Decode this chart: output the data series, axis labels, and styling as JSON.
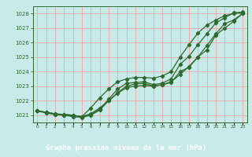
{
  "x": [
    0,
    1,
    2,
    3,
    4,
    5,
    6,
    7,
    8,
    9,
    10,
    11,
    12,
    13,
    14,
    15,
    16,
    17,
    18,
    19,
    20,
    21,
    22,
    23
  ],
  "line1": [
    1021.3,
    1021.2,
    1021.1,
    1021.05,
    1021.0,
    1020.9,
    1021.1,
    1021.5,
    1022.0,
    1022.5,
    1022.9,
    1023.0,
    1023.05,
    1023.0,
    1023.1,
    1023.3,
    1023.8,
    1024.35,
    1025.0,
    1025.8,
    1026.6,
    1027.3,
    1027.55,
    1028.0
  ],
  "line2": [
    1021.3,
    1021.2,
    1021.05,
    1021.0,
    1020.9,
    1020.85,
    1021.0,
    1021.35,
    1022.0,
    1022.55,
    1023.0,
    1023.15,
    1023.2,
    1023.0,
    1023.1,
    1023.25,
    1024.0,
    1024.3,
    1025.0,
    1025.5,
    1026.5,
    1027.0,
    1027.45,
    1028.0
  ],
  "line3": [
    1021.3,
    1021.15,
    1021.05,
    1021.05,
    1021.0,
    1020.9,
    1021.05,
    1021.4,
    1022.1,
    1022.8,
    1023.2,
    1023.25,
    1023.3,
    1023.1,
    1023.2,
    1023.5,
    1024.5,
    1025.05,
    1025.85,
    1026.6,
    1027.35,
    1027.7,
    1028.05,
    1028.1
  ],
  "line4": [
    1021.3,
    1021.2,
    1021.1,
    1021.0,
    1020.95,
    1020.9,
    1021.5,
    1022.2,
    1022.8,
    1023.3,
    1023.5,
    1023.6,
    1023.6,
    1023.55,
    1023.7,
    1024.0,
    1025.0,
    1025.85,
    1026.65,
    1027.2,
    1027.55,
    1027.85,
    1028.0,
    1028.05
  ],
  "bg_color": "#c8eae8",
  "plot_bg": "#c8eae8",
  "grid_color_h": "#e8b0b0",
  "grid_color_v": "#e8b0b0",
  "line_color": "#2d6a2d",
  "ylabel_values": [
    1021,
    1022,
    1023,
    1024,
    1025,
    1026,
    1027,
    1028
  ],
  "ylim": [
    1020.5,
    1028.5
  ],
  "xlim": [
    -0.5,
    23.5
  ],
  "xlabel": "Graphe pression niveau de la mer (hPa)",
  "xlabel_color": "#ffffff",
  "xlabel_bg": "#2d6a2d",
  "tick_color": "#2d6a2d"
}
